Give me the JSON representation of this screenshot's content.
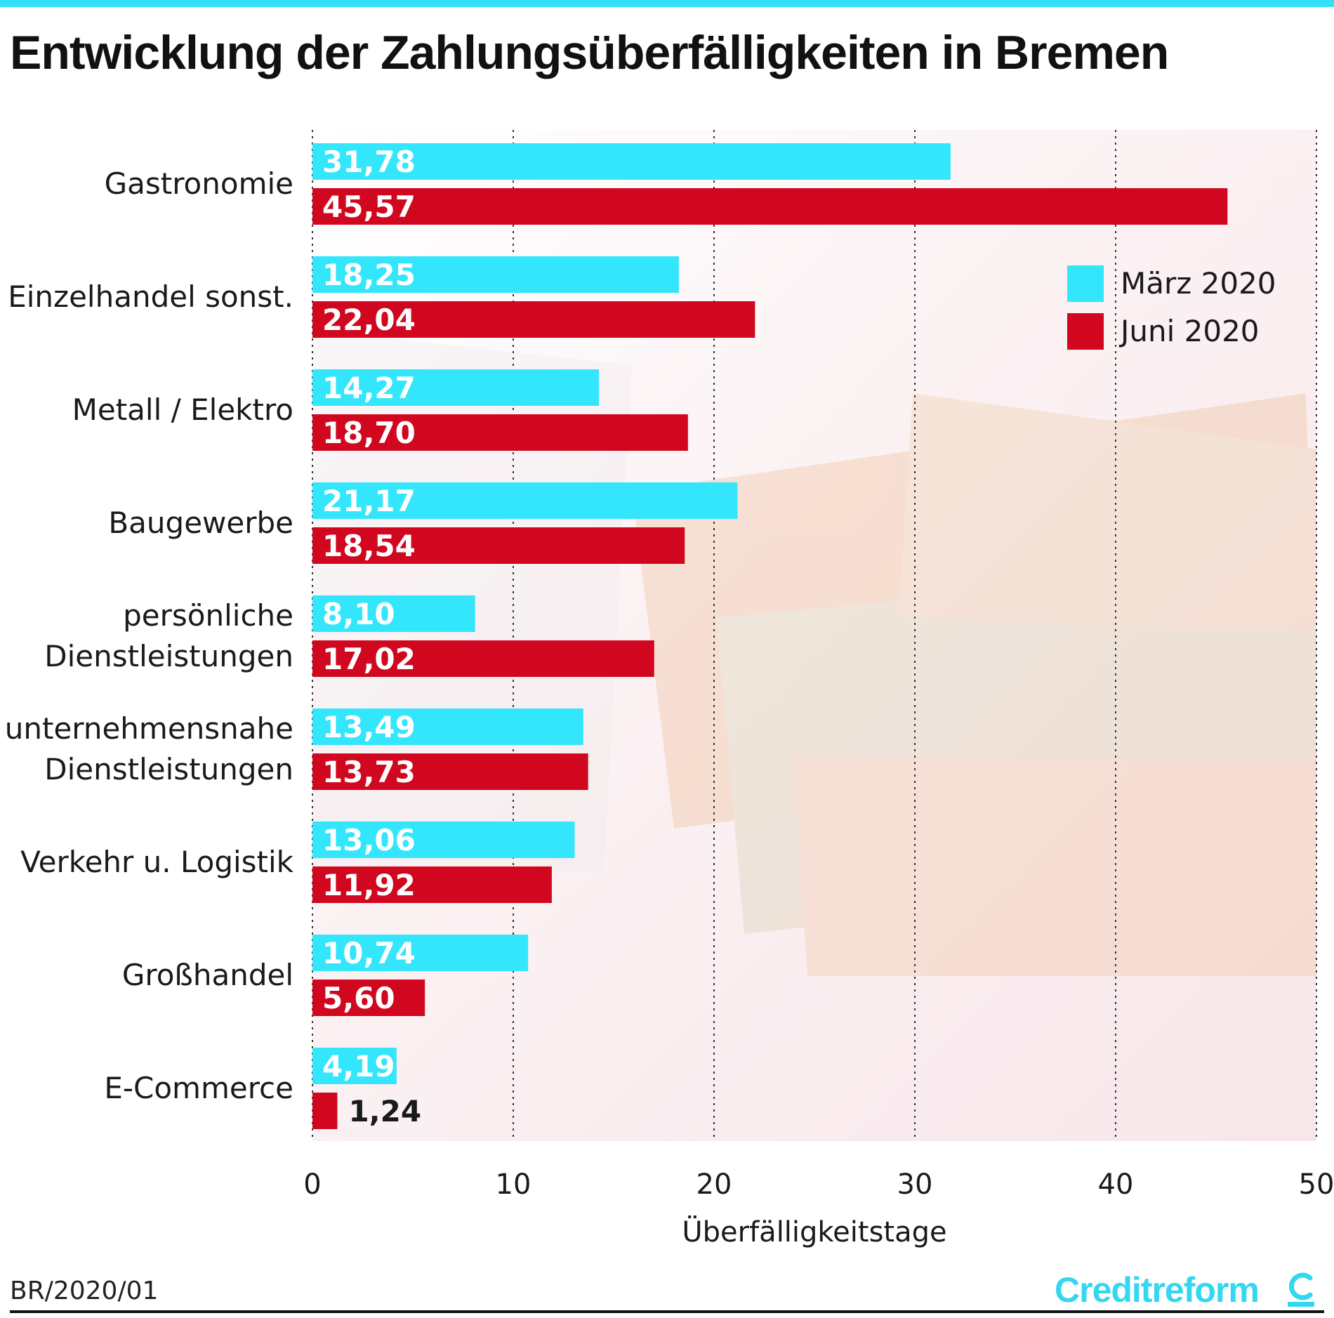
{
  "header": {
    "title": "Entwicklung der Zahlungsüberfälligkeiten in Bremen"
  },
  "footer": {
    "source": "BR/2020/01",
    "logo_text": "Creditreform"
  },
  "colors": {
    "accent": "#33e0f7",
    "march": "#33e6fb",
    "june": "#d0071e",
    "grid": "#333333"
  },
  "chart_data": {
    "type": "bar",
    "orientation": "horizontal",
    "title": "Entwicklung der Zahlungsüberfälligkeiten in Bremen",
    "xlabel": "Überfälligkeitstage",
    "ylabel": "",
    "xlim": [
      0,
      50
    ],
    "xticks": [
      0,
      10,
      20,
      30,
      40,
      50
    ],
    "grid": "vertical dotted",
    "legend_position": "top-right",
    "categories": [
      [
        "Gastronomie"
      ],
      [
        "Einzelhandel sonst."
      ],
      [
        "Metall / Elektro"
      ],
      [
        "Baugewerbe"
      ],
      [
        "persönliche",
        "Dienstleistungen"
      ],
      [
        "unternehmensnahe",
        "Dienstleistungen"
      ],
      [
        "Verkehr u. Logistik"
      ],
      [
        "Großhandel"
      ],
      [
        "E-Commerce"
      ]
    ],
    "series": [
      {
        "name": "März 2020",
        "color": "#33e6fb",
        "values": [
          31.78,
          18.25,
          14.27,
          21.17,
          8.1,
          13.49,
          13.06,
          10.74,
          4.19
        ],
        "labels": [
          "31,78",
          "18,25",
          "14,27",
          "21,17",
          "8,10",
          "13,49",
          "13,06",
          "10,74",
          "4,19"
        ]
      },
      {
        "name": "Juni 2020",
        "color": "#d0071e",
        "values": [
          45.57,
          22.04,
          18.7,
          18.54,
          17.02,
          13.73,
          11.92,
          5.6,
          1.24
        ],
        "labels": [
          "45,57",
          "22,04",
          "18,70",
          "18,54",
          "17,02",
          "13,73",
          "11,92",
          "5,60",
          "1,24"
        ]
      }
    ]
  }
}
